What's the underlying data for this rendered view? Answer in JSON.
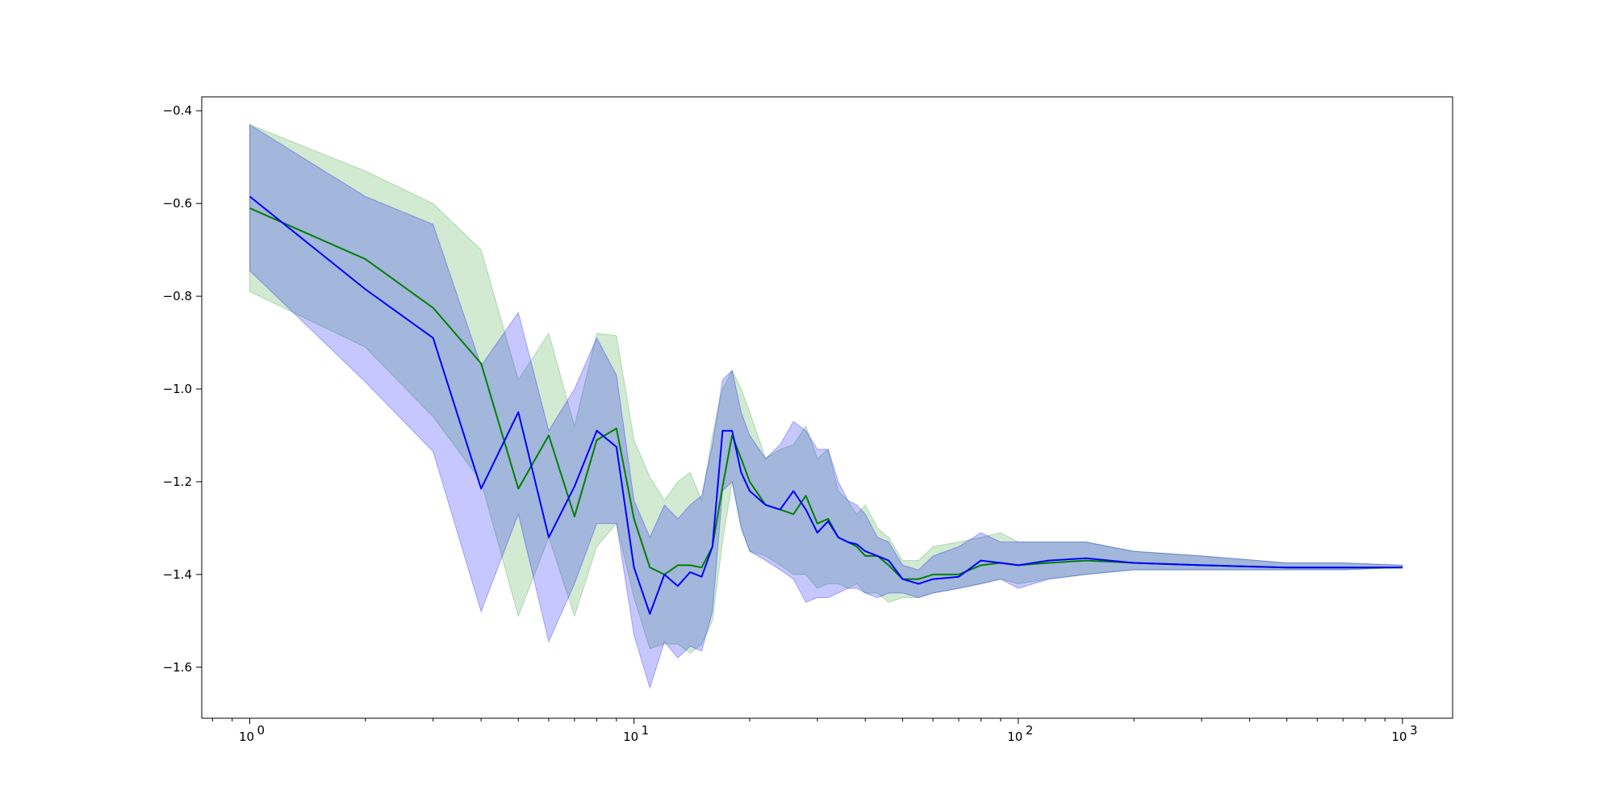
{
  "chart_data": {
    "type": "line",
    "x_scale": "log",
    "xlim": [
      0.75,
      1350
    ],
    "ylim": [
      -1.71,
      -0.37
    ],
    "grid": false,
    "legend": "none",
    "x_ticks": [
      {
        "value": 1,
        "base": "10",
        "exp": "0"
      },
      {
        "value": 10,
        "base": "10",
        "exp": "1"
      },
      {
        "value": 100,
        "base": "10",
        "exp": "2"
      },
      {
        "value": 1000,
        "base": "10",
        "exp": "3"
      }
    ],
    "y_ticks": [
      {
        "value": -0.4,
        "label": "−0.4"
      },
      {
        "value": -0.6,
        "label": "−0.6"
      },
      {
        "value": -0.8,
        "label": "−0.8"
      },
      {
        "value": -1.0,
        "label": "−1.0"
      },
      {
        "value": -1.2,
        "label": "−1.2"
      },
      {
        "value": -1.4,
        "label": "−1.4"
      },
      {
        "value": -1.6,
        "label": "−1.6"
      }
    ],
    "series": [
      {
        "color": "#008000",
        "band_color": "#2ca02c",
        "x": [
          1,
          2,
          3,
          4,
          5,
          6,
          7,
          8,
          9,
          10,
          11,
          12,
          13,
          14,
          15,
          16,
          17,
          18,
          19,
          20,
          22,
          24,
          26,
          28,
          30,
          32,
          34,
          36,
          38,
          40,
          43,
          46,
          50,
          55,
          60,
          70,
          80,
          90,
          100,
          120,
          150,
          200,
          300,
          500,
          700,
          1000
        ],
        "y": [
          -0.61,
          -0.72,
          -0.825,
          -0.945,
          -1.215,
          -1.1,
          -1.275,
          -1.11,
          -1.085,
          -1.28,
          -1.385,
          -1.4,
          -1.38,
          -1.38,
          -1.385,
          -1.34,
          -1.21,
          -1.1,
          -1.15,
          -1.2,
          -1.25,
          -1.26,
          -1.27,
          -1.23,
          -1.29,
          -1.28,
          -1.32,
          -1.33,
          -1.34,
          -1.36,
          -1.36,
          -1.38,
          -1.41,
          -1.41,
          -1.4,
          -1.4,
          -1.38,
          -1.375,
          -1.38,
          -1.375,
          -1.37,
          -1.375,
          -1.38,
          -1.385,
          -1.385,
          -1.385
        ],
        "upper": [
          -0.43,
          -0.53,
          -0.6,
          -0.7,
          -0.98,
          -0.88,
          -1.08,
          -0.88,
          -0.885,
          -1.11,
          -1.19,
          -1.24,
          -1.2,
          -1.18,
          -1.24,
          -1.1,
          -1.0,
          -0.96,
          -1.0,
          -1.05,
          -1.15,
          -1.13,
          -1.12,
          -1.08,
          -1.15,
          -1.13,
          -1.22,
          -1.24,
          -1.27,
          -1.25,
          -1.3,
          -1.32,
          -1.37,
          -1.37,
          -1.34,
          -1.33,
          -1.32,
          -1.31,
          -1.33,
          -1.33,
          -1.33,
          -1.35,
          -1.36,
          -1.375,
          -1.375,
          -1.38
        ],
        "lower": [
          -0.79,
          -0.91,
          -1.06,
          -1.2,
          -1.49,
          -1.32,
          -1.49,
          -1.34,
          -1.29,
          -1.45,
          -1.56,
          -1.55,
          -1.55,
          -1.57,
          -1.55,
          -1.5,
          -1.33,
          -1.2,
          -1.3,
          -1.35,
          -1.36,
          -1.38,
          -1.4,
          -1.4,
          -1.43,
          -1.42,
          -1.42,
          -1.43,
          -1.42,
          -1.44,
          -1.44,
          -1.46,
          -1.45,
          -1.45,
          -1.44,
          -1.43,
          -1.42,
          -1.41,
          -1.42,
          -1.41,
          -1.4,
          -1.39,
          -1.39,
          -1.39,
          -1.39,
          -1.385
        ]
      },
      {
        "color": "#0000ff",
        "band_color": "#0000ff",
        "x": [
          1,
          2,
          3,
          4,
          5,
          6,
          7,
          8,
          9,
          10,
          11,
          12,
          13,
          14,
          15,
          16,
          17,
          18,
          19,
          20,
          22,
          24,
          26,
          28,
          30,
          32,
          34,
          36,
          38,
          40,
          43,
          46,
          50,
          55,
          60,
          70,
          80,
          90,
          100,
          120,
          150,
          200,
          300,
          500,
          700,
          1000
        ],
        "y": [
          -0.585,
          -0.785,
          -0.89,
          -1.215,
          -1.05,
          -1.32,
          -1.21,
          -1.09,
          -1.125,
          -1.385,
          -1.485,
          -1.4,
          -1.425,
          -1.395,
          -1.405,
          -1.34,
          -1.09,
          -1.09,
          -1.18,
          -1.22,
          -1.25,
          -1.26,
          -1.22,
          -1.26,
          -1.31,
          -1.285,
          -1.32,
          -1.33,
          -1.335,
          -1.35,
          -1.36,
          -1.37,
          -1.41,
          -1.42,
          -1.41,
          -1.405,
          -1.37,
          -1.375,
          -1.38,
          -1.37,
          -1.365,
          -1.375,
          -1.38,
          -1.385,
          -1.385,
          -1.385
        ],
        "upper": [
          -0.43,
          -0.585,
          -0.645,
          -0.95,
          -0.835,
          -1.09,
          -1.0,
          -0.89,
          -0.97,
          -1.24,
          -1.32,
          -1.25,
          -1.28,
          -1.25,
          -1.23,
          -1.12,
          -0.98,
          -0.96,
          -1.05,
          -1.1,
          -1.15,
          -1.12,
          -1.07,
          -1.09,
          -1.13,
          -1.13,
          -1.2,
          -1.24,
          -1.25,
          -1.27,
          -1.32,
          -1.33,
          -1.38,
          -1.39,
          -1.36,
          -1.34,
          -1.31,
          -1.33,
          -1.33,
          -1.33,
          -1.33,
          -1.35,
          -1.36,
          -1.375,
          -1.375,
          -1.38
        ],
        "lower": [
          -0.745,
          -0.985,
          -1.135,
          -1.48,
          -1.27,
          -1.545,
          -1.42,
          -1.29,
          -1.29,
          -1.53,
          -1.645,
          -1.545,
          -1.58,
          -1.555,
          -1.565,
          -1.48,
          -1.22,
          -1.2,
          -1.3,
          -1.35,
          -1.37,
          -1.39,
          -1.41,
          -1.46,
          -1.45,
          -1.45,
          -1.44,
          -1.43,
          -1.43,
          -1.44,
          -1.45,
          -1.44,
          -1.44,
          -1.45,
          -1.44,
          -1.43,
          -1.42,
          -1.41,
          -1.43,
          -1.41,
          -1.4,
          -1.39,
          -1.39,
          -1.39,
          -1.39,
          -1.385
        ]
      }
    ]
  }
}
